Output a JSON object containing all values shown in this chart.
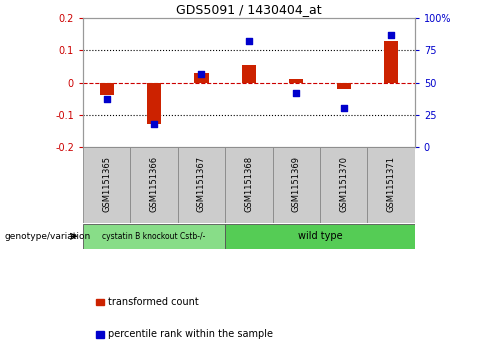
{
  "title": "GDS5091 / 1430404_at",
  "samples": [
    "GSM1151365",
    "GSM1151366",
    "GSM1151367",
    "GSM1151368",
    "GSM1151369",
    "GSM1151370",
    "GSM1151371"
  ],
  "red_bars": [
    -0.04,
    -0.13,
    0.03,
    0.055,
    0.01,
    -0.02,
    0.13
  ],
  "blue_dots": [
    37,
    18,
    57,
    82,
    42,
    30,
    87
  ],
  "ylim_left": [
    -0.2,
    0.2
  ],
  "ylim_right": [
    0,
    100
  ],
  "yticks_left": [
    -0.2,
    -0.1,
    0.0,
    0.1,
    0.2
  ],
  "yticks_right": [
    0,
    25,
    50,
    75,
    100
  ],
  "ytick_labels_left": [
    "-0.2",
    "-0.1",
    "0",
    "0.1",
    "0.2"
  ],
  "ytick_labels_right": [
    "0",
    "25",
    "50",
    "75",
    "100%"
  ],
  "bar_color": "#cc2200",
  "dot_color": "#0000cc",
  "group1_label": "cystatin B knockout Cstb-/-",
  "group2_label": "wild type",
  "group1_indices": [
    0,
    1,
    2
  ],
  "group2_indices": [
    3,
    4,
    5,
    6
  ],
  "group1_color": "#88dd88",
  "group2_color": "#55cc55",
  "genotype_label": "genotype/variation",
  "legend1": "transformed count",
  "legend2": "percentile rank within the sample",
  "bar_width": 0.3,
  "dot_size": 20
}
